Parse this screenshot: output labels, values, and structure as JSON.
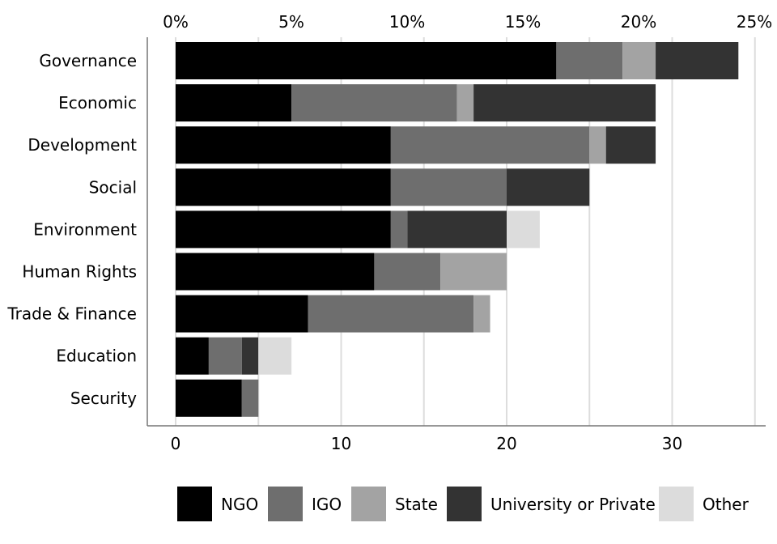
{
  "chart_data": {
    "type": "bar",
    "orientation": "horizontal",
    "stacked": true,
    "categories": [
      "Governance",
      "Economic",
      "Development",
      "Social",
      "Environment",
      "Human Rights",
      "Trade & Finance",
      "Education",
      "Security"
    ],
    "series": [
      {
        "name": "NGO",
        "color": "#000000",
        "values": [
          23,
          7,
          13,
          13,
          13,
          12,
          8,
          2,
          4
        ]
      },
      {
        "name": "IGO",
        "color": "#6e6e6e",
        "values": [
          4,
          10,
          12,
          7,
          1,
          4,
          10,
          2,
          1
        ]
      },
      {
        "name": "State",
        "color": "#a3a3a3",
        "values": [
          2,
          1,
          1,
          0,
          0,
          4,
          1,
          0,
          0
        ]
      },
      {
        "name": "University or Private",
        "color": "#333333",
        "values": [
          5,
          11,
          3,
          5,
          6,
          0,
          0,
          1,
          0
        ]
      },
      {
        "name": "Other",
        "color": "#dcdcdc",
        "values": [
          0,
          0,
          0,
          0,
          2,
          0,
          0,
          2,
          0
        ]
      }
    ],
    "xlim": [
      0,
      35
    ],
    "bottom_ticks": [
      "0",
      "10",
      "20",
      "30"
    ],
    "bottom_tick_values": [
      0,
      10,
      20,
      30
    ],
    "top_ticks": [
      "0%",
      "5%",
      "10%",
      "15%",
      "20%",
      "25%"
    ],
    "top_tick_values": [
      0,
      5,
      10,
      15,
      20,
      25
    ],
    "grid": true,
    "legend_position": "bottom"
  }
}
